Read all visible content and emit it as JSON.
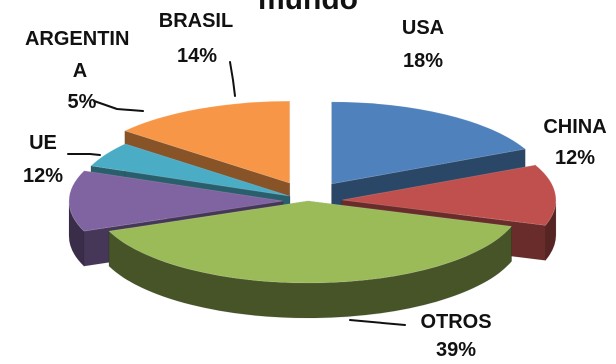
{
  "chart_data": {
    "type": "pie",
    "title": "mundo",
    "is_3d": true,
    "exploded": true,
    "legend": "none",
    "slices": [
      {
        "label": "USA",
        "value": 18,
        "display": "18%",
        "color": "#4F81BD"
      },
      {
        "label": "CHINA",
        "value": 12,
        "display": "12%",
        "color": "#C0504D"
      },
      {
        "label": "OTROS",
        "value": 39,
        "display": "39%",
        "color": "#9BBB59"
      },
      {
        "label": "UE",
        "value": 12,
        "display": "12%",
        "color": "#8064A2"
      },
      {
        "label": "ARGENTIN A",
        "value": 5,
        "display": "5%",
        "color": "#4BACC6"
      },
      {
        "label": "BRASIL",
        "value": 14,
        "display": "14%",
        "color": "#F79646"
      }
    ]
  }
}
